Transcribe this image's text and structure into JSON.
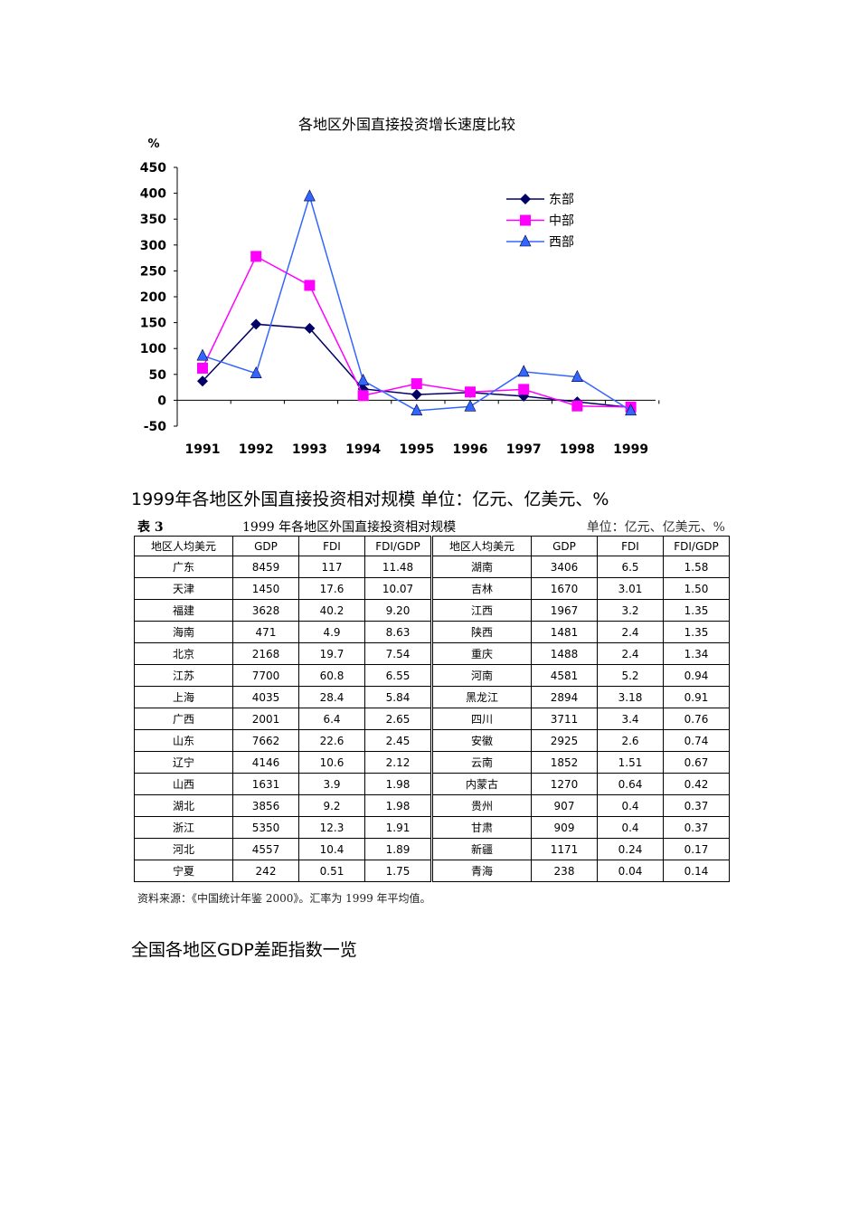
{
  "chart_data": {
    "type": "line",
    "title": "各地区外国直接投资增长速度比较",
    "ylabel": "%",
    "ylim": [
      -50,
      450
    ],
    "yticks": [
      450,
      400,
      350,
      300,
      250,
      200,
      150,
      100,
      50,
      0,
      -50
    ],
    "categories": [
      "1991",
      "1992",
      "1993",
      "1994",
      "1995",
      "1996",
      "1997",
      "1998",
      "1999"
    ],
    "legend_position": "top-right",
    "series": [
      {
        "name": "东部",
        "color": "#000066",
        "marker": "diamond",
        "values": [
          37,
          147,
          139,
          22,
          11,
          15,
          8,
          -3,
          -14
        ]
      },
      {
        "name": "中部",
        "color": "#ff00ff",
        "marker": "square",
        "values": [
          62,
          278,
          222,
          9,
          32,
          16,
          21,
          -11,
          -13
        ]
      },
      {
        "name": "西部",
        "color": "#3366ff",
        "marker": "triangle",
        "values": [
          86,
          52,
          394,
          38,
          -20,
          -12,
          55,
          45,
          -20
        ]
      }
    ]
  },
  "heading1": "1999年各地区外国直接投资相对规模 单位：亿元、亿美元、%",
  "table_caption": {
    "label": "表 3",
    "title": "1999 年各地区外国直接投资相对规模",
    "unit": "单位：亿元、亿美元、%"
  },
  "table": {
    "headers": [
      "地区人均美元",
      "GDP",
      "FDI",
      "FDI/GDP",
      "地区人均美元",
      "GDP",
      "FDI",
      "FDI/GDP"
    ],
    "rows": [
      [
        "广东",
        "8459",
        "117",
        "11.48",
        "湖南",
        "3406",
        "6.5",
        "1.58"
      ],
      [
        "天津",
        "1450",
        "17.6",
        "10.07",
        "吉林",
        "1670",
        "3.01",
        "1.50"
      ],
      [
        "福建",
        "3628",
        "40.2",
        "9.20",
        "江西",
        "1967",
        "3.2",
        "1.35"
      ],
      [
        "海南",
        "471",
        "4.9",
        "8.63",
        "陕西",
        "1481",
        "2.4",
        "1.35"
      ],
      [
        "北京",
        "2168",
        "19.7",
        "7.54",
        "重庆",
        "1488",
        "2.4",
        "1.34"
      ],
      [
        "江苏",
        "7700",
        "60.8",
        "6.55",
        "河南",
        "4581",
        "5.2",
        "0.94"
      ],
      [
        "上海",
        "4035",
        "28.4",
        "5.84",
        "黑龙江",
        "2894",
        "3.18",
        "0.91"
      ],
      [
        "广西",
        "2001",
        "6.4",
        "2.65",
        "四川",
        "3711",
        "3.4",
        "0.76"
      ],
      [
        "山东",
        "7662",
        "22.6",
        "2.45",
        "安徽",
        "2925",
        "2.6",
        "0.74"
      ],
      [
        "辽宁",
        "4146",
        "10.6",
        "2.12",
        "云南",
        "1852",
        "1.51",
        "0.67"
      ],
      [
        "山西",
        "1631",
        "3.9",
        "1.98",
        "内蒙古",
        "1270",
        "0.64",
        "0.42"
      ],
      [
        "湖北",
        "3856",
        "9.2",
        "1.98",
        "贵州",
        "907",
        "0.4",
        "0.37"
      ],
      [
        "浙江",
        "5350",
        "12.3",
        "1.91",
        "甘肃",
        "909",
        "0.4",
        "0.37"
      ],
      [
        "河北",
        "4557",
        "10.4",
        "1.89",
        "新疆",
        "1171",
        "0.24",
        "0.17"
      ],
      [
        "宁夏",
        "242",
        "0.51",
        "1.75",
        "青海",
        "238",
        "0.04",
        "0.14"
      ]
    ]
  },
  "source_note": "资料来源：《中国统计年鉴 2000》。汇率为 1999 年平均值。",
  "heading2": "全国各地区GDP差距指数一览"
}
